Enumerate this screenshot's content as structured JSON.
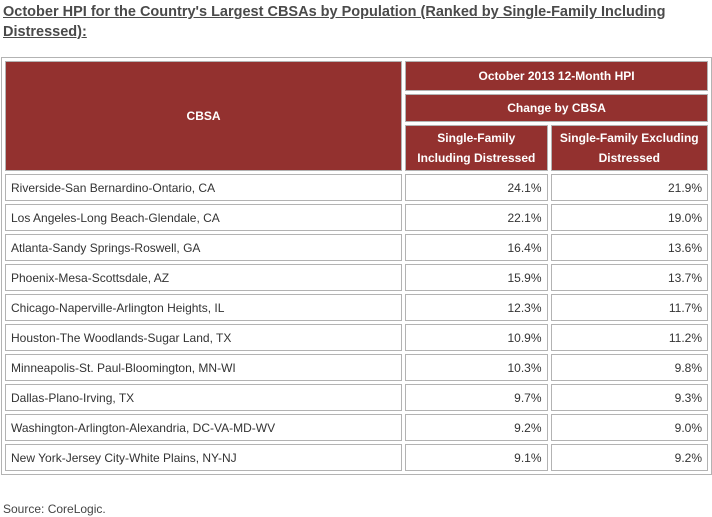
{
  "title": "October HPI for the Country's Largest CBSAs by Population (Ranked by Single-Family Including Distressed):",
  "table": {
    "header_cbsa": "CBSA",
    "header_period": "October 2013 12-Month HPI",
    "header_change": "Change by CBSA",
    "header_col1": "Single-Family Including Distressed",
    "header_col2": "Single-Family Excluding Distressed",
    "rows": [
      {
        "name": "Riverside-San Bernardino-Ontario, CA",
        "incl": "24.1%",
        "excl": "21.9%"
      },
      {
        "name": "Los Angeles-Long Beach-Glendale, CA",
        "incl": "22.1%",
        "excl": "19.0%"
      },
      {
        "name": "Atlanta-Sandy Springs-Roswell, GA",
        "incl": "16.4%",
        "excl": "13.6%"
      },
      {
        "name": "Phoenix-Mesa-Scottsdale, AZ",
        "incl": "15.9%",
        "excl": "13.7%"
      },
      {
        "name": "Chicago-Naperville-Arlington Heights, IL",
        "incl": "12.3%",
        "excl": "11.7%"
      },
      {
        "name": "Houston-The Woodlands-Sugar Land, TX",
        "incl": "10.9%",
        "excl": "11.2%"
      },
      {
        "name": "Minneapolis-St. Paul-Bloomington, MN-WI",
        "incl": "10.3%",
        "excl": "9.8%"
      },
      {
        "name": "Dallas-Plano-Irving, TX",
        "incl": "9.7%",
        "excl": "9.3%"
      },
      {
        "name": "Washington-Arlington-Alexandria, DC-VA-MD-WV",
        "incl": "9.2%",
        "excl": "9.0%"
      },
      {
        "name": "New York-Jersey City-White Plains, NY-NJ",
        "incl": "9.1%",
        "excl": "9.2%"
      }
    ]
  },
  "source": "Source: CoreLogic."
}
